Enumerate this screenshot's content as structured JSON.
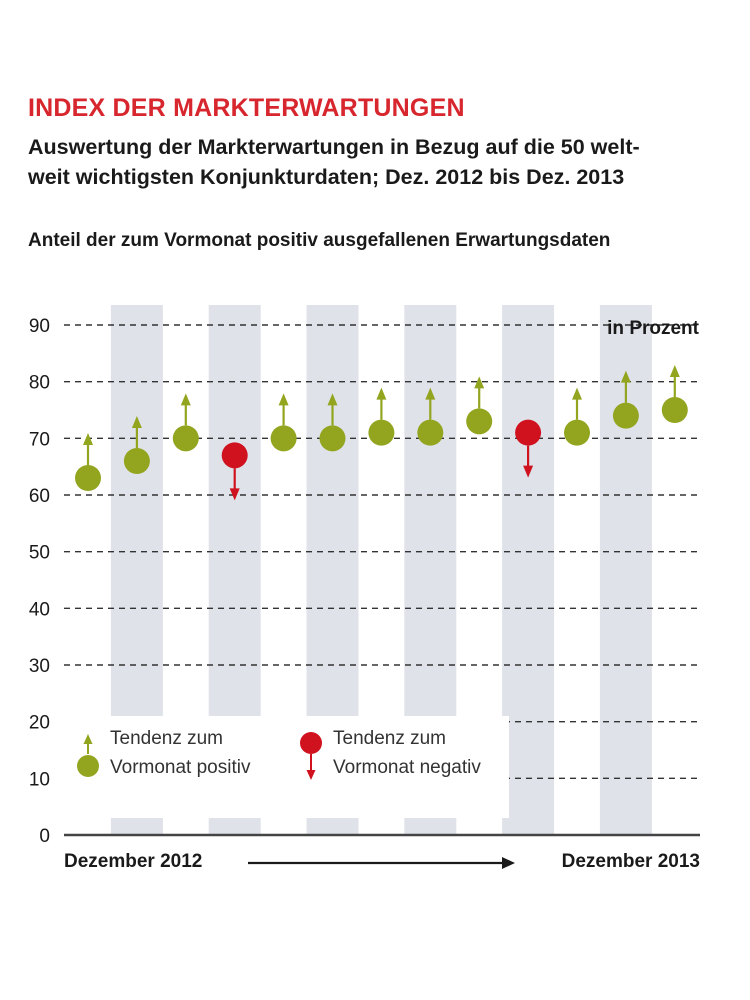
{
  "header": {
    "title": "INDEX DER MARKTERWARTUNGEN",
    "subtitle_line1": "Auswertung der Markterwartungen in Bezug auf die 50 welt-",
    "subtitle_line2": "weit wichtigsten Konjunkturdaten; Dez. 2012 bis Dez. 2013",
    "chart_heading": "Anteil der zum Vormonat positiv ausgefallenen Erwartungsdaten"
  },
  "footer": {
    "start_label": "Dezember 2012",
    "end_label": "Dezember 2013"
  },
  "colors": {
    "title": "#d7262d",
    "positive": "#93a51f",
    "negative": "#d0121f",
    "band": "#dfe3e9",
    "grid": "#333333"
  },
  "chart_data": {
    "type": "scatter",
    "unit_label": "in Prozent",
    "ylim": [
      0,
      90
    ],
    "yticks": [
      0,
      10,
      20,
      30,
      40,
      50,
      60,
      70,
      80,
      90
    ],
    "grid": true,
    "legend_placement": "bottom-left",
    "values": [
      63,
      66,
      70,
      67,
      70,
      70,
      71,
      71,
      73,
      71,
      71,
      74,
      75
    ],
    "trend": [
      "up",
      "up",
      "up",
      "down",
      "up",
      "up",
      "up",
      "up",
      "up",
      "down",
      "up",
      "up",
      "up"
    ],
    "legend": [
      {
        "key": "up",
        "line1": "Tendenz zum",
        "line2": "Vormonat positiv"
      },
      {
        "key": "down",
        "line1": "Tendenz zum",
        "line2": "Vormonat negativ"
      }
    ]
  }
}
